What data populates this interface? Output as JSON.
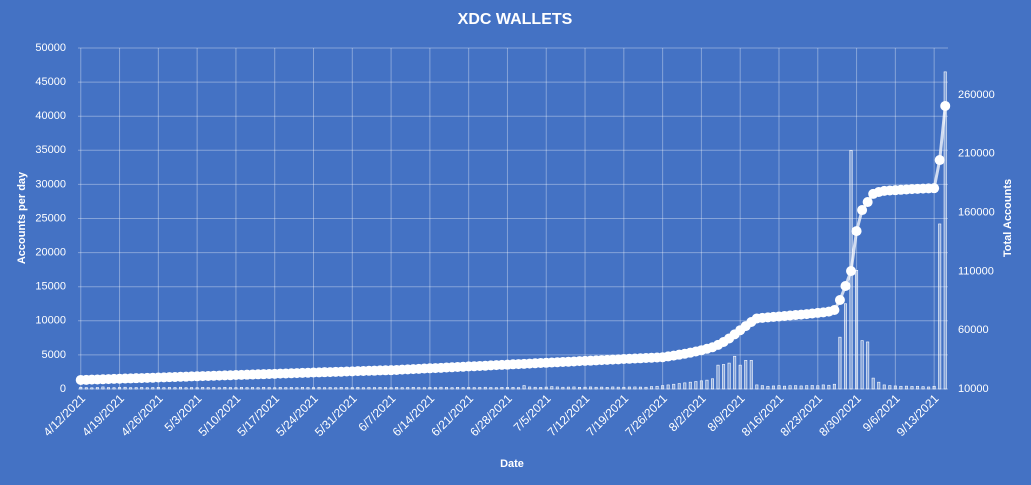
{
  "chart_data": {
    "type": "bar_line",
    "title": "XDC WALLETS",
    "x_label": "Date",
    "y_label": "Accounts per day",
    "y2_label": "Total Accounts",
    "background": "#4472c4",
    "grid": true,
    "categories": [
      "4/12/2021",
      null,
      null,
      null,
      null,
      null,
      null,
      "4/19/2021",
      null,
      null,
      null,
      null,
      null,
      null,
      "4/26/2021",
      null,
      null,
      null,
      null,
      null,
      null,
      "5/3/2021",
      null,
      null,
      null,
      null,
      null,
      null,
      "5/10/2021",
      null,
      null,
      null,
      null,
      null,
      null,
      "5/17/2021",
      null,
      null,
      null,
      null,
      null,
      null,
      "5/24/2021",
      null,
      null,
      null,
      null,
      null,
      null,
      "5/31/2021",
      null,
      null,
      null,
      null,
      null,
      null,
      "6/7/2021",
      null,
      null,
      null,
      null,
      null,
      null,
      "6/14/2021",
      null,
      null,
      null,
      null,
      null,
      null,
      "6/21/2021",
      null,
      null,
      null,
      null,
      null,
      null,
      "6/28/2021",
      null,
      null,
      null,
      null,
      null,
      null,
      "7/5/2021",
      null,
      null,
      null,
      null,
      null,
      null,
      "7/12/2021",
      null,
      null,
      null,
      null,
      null,
      null,
      "7/19/2021",
      null,
      null,
      null,
      null,
      null,
      null,
      "7/26/2021",
      null,
      null,
      null,
      null,
      null,
      null,
      "8/2/2021",
      null,
      null,
      null,
      null,
      null,
      null,
      "8/9/2021",
      null,
      null,
      null,
      null,
      null,
      null,
      "8/16/2021",
      null,
      null,
      null,
      null,
      null,
      null,
      "8/23/2021",
      null,
      null,
      null,
      null,
      null,
      null,
      "8/30/2021",
      null,
      null,
      null,
      null,
      null,
      null,
      "9/6/2021",
      null,
      null,
      null,
      null,
      null,
      null,
      "9/13/2021",
      null,
      null
    ],
    "series": [
      {
        "name": "Accounts per day",
        "type": "bar",
        "color": "#ffffff",
        "values": [
          250,
          200,
          180,
          220,
          300,
          210,
          190,
          230,
          260,
          200,
          210,
          240,
          190,
          220,
          250,
          200,
          230,
          210,
          260,
          190,
          220,
          200,
          240,
          210,
          230,
          190,
          250,
          220,
          200,
          240,
          210,
          230,
          200,
          250,
          220,
          190,
          240,
          210,
          230,
          200,
          250,
          220,
          210,
          240,
          200,
          230,
          190,
          250,
          220,
          210,
          240,
          200,
          230,
          210,
          250,
          220,
          200,
          240,
          210,
          230,
          250,
          220,
          200,
          240,
          210,
          260,
          230,
          200,
          250,
          220,
          240,
          210,
          230,
          260,
          220,
          200,
          250,
          230,
          240,
          210,
          500,
          300,
          260,
          240,
          280,
          350,
          300,
          260,
          280,
          300,
          250,
          270,
          300,
          260,
          280,
          240,
          300,
          270,
          260,
          290,
          300,
          280,
          260,
          350,
          400,
          500,
          600,
          700,
          800,
          900,
          1000,
          1100,
          1200,
          1300,
          1500,
          3500,
          3600,
          3800,
          4800,
          3500,
          4200,
          4200,
          600,
          500,
          400,
          450,
          500,
          420,
          480,
          500,
          450,
          500,
          520,
          480,
          600,
          550,
          700,
          7600,
          12500,
          35000,
          17400,
          7100,
          6900,
          1600,
          1000,
          600,
          500,
          450,
          400,
          420,
          380,
          400,
          350,
          300,
          400,
          24200,
          46500
        ]
      },
      {
        "name": "Total Accounts",
        "type": "line",
        "axis": "y2",
        "color": "#ffffff",
        "values": [
          17700,
          17800,
          18000,
          18100,
          18300,
          18400,
          18600,
          18700,
          18900,
          19000,
          19200,
          19300,
          19500,
          19600,
          19800,
          19900,
          20100,
          20200,
          20400,
          20500,
          20700,
          20800,
          21000,
          21100,
          21300,
          21400,
          21600,
          21700,
          21900,
          22000,
          22200,
          22300,
          22500,
          22600,
          22800,
          22900,
          23100,
          23200,
          23400,
          23500,
          23700,
          23800,
          24000,
          24100,
          24300,
          24400,
          24600,
          24700,
          24900,
          25000,
          25200,
          25300,
          25500,
          25600,
          25800,
          25900,
          26000,
          26200,
          26500,
          26700,
          26900,
          27100,
          27400,
          27600,
          27800,
          28000,
          28300,
          28500,
          28700,
          28900,
          29200,
          29400,
          29600,
          29800,
          30100,
          30300,
          30500,
          30700,
          31000,
          31200,
          31400,
          31600,
          31900,
          32100,
          32300,
          32500,
          32800,
          33000,
          33200,
          33400,
          33700,
          33900,
          34100,
          34300,
          34600,
          34800,
          35000,
          35200,
          35500,
          35700,
          35900,
          36100,
          36400,
          36600,
          36800,
          37000,
          37700,
          38400,
          39200,
          40000,
          40900,
          41900,
          43000,
          44200,
          45500,
          47500,
          50000,
          53000,
          56500,
          60000,
          63500,
          67000,
          70000,
          70500,
          70900,
          71300,
          71700,
          72100,
          72500,
          72900,
          73300,
          73700,
          74200,
          74700,
          75200,
          75800,
          77200,
          85700,
          97600,
          110300,
          144300,
          162200,
          169000,
          175900,
          177500,
          178500,
          178800,
          179100,
          179400,
          179700,
          180000,
          180200,
          180400,
          180600,
          180800,
          204700,
          250700
        ]
      }
    ],
    "ylim": [
      0,
      50000
    ],
    "yticks": [
      0,
      5000,
      10000,
      15000,
      20000,
      25000,
      30000,
      35000,
      40000,
      45000,
      50000
    ],
    "y2lim": [
      10000,
      300000
    ],
    "y2ticks": [
      10000,
      60000,
      110000,
      160000,
      210000,
      260000
    ]
  }
}
